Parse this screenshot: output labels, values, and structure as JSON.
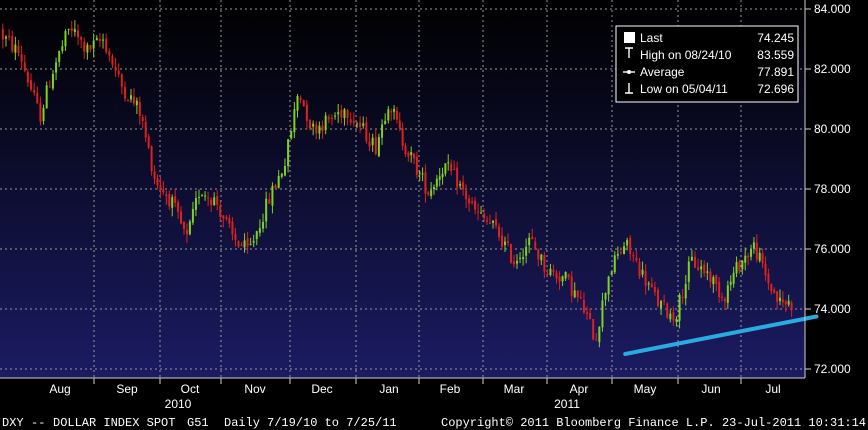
{
  "chart_data": {
    "type": "candlestick",
    "ticker": "DXY",
    "security": "DOLLAR INDEX SPOT",
    "page_code": "G51",
    "period": "Daily",
    "date_range": "7/19/10 to 7/25/11",
    "copyright": "Copyright© 2011 Bloomberg Finance L.P.",
    "timestamp": "23-Jul-2011 10:31:14",
    "ylim": [
      71.7,
      84.3
    ],
    "yticks": [
      72,
      74,
      76,
      78,
      80,
      82,
      84
    ],
    "ytick_labels": [
      "72.000",
      "74.000",
      "76.000",
      "78.000",
      "80.000",
      "82.000",
      "84.000"
    ],
    "x_months": [
      "Aug",
      "Sep",
      "Oct",
      "Nov",
      "Dec",
      "Jan",
      "Feb",
      "Mar",
      "Apr",
      "May",
      "Jun",
      "Jul"
    ],
    "x_years": [
      {
        "label": "2010",
        "month": "Oct"
      },
      {
        "label": "2011",
        "month": "Apr"
      }
    ],
    "up_color": "#7ed321",
    "down_color": "#e0201b",
    "trendline": {
      "color": "#29abe2",
      "start": {
        "month": "May",
        "offset": -0.3,
        "y": 72.5
      },
      "end": {
        "month": "Jul",
        "offset": 0.7,
        "y": 73.75
      }
    },
    "price_path": [
      [
        0,
        83.2
      ],
      [
        0.3,
        82.5
      ],
      [
        0.6,
        80.4
      ],
      [
        0.8,
        82.0
      ],
      [
        1.05,
        83.4
      ],
      [
        1.3,
        82.6
      ],
      [
        1.55,
        83.0
      ],
      [
        1.8,
        81.5
      ],
      [
        2.1,
        80.6
      ],
      [
        2.35,
        78.3
      ],
      [
        2.6,
        77.6
      ],
      [
        2.85,
        76.3
      ],
      [
        3.05,
        78.0
      ],
      [
        3.3,
        77.6
      ],
      [
        3.55,
        76.4
      ],
      [
        3.8,
        75.9
      ],
      [
        4.1,
        77.6
      ],
      [
        4.35,
        78.9
      ],
      [
        4.55,
        81.3
      ],
      [
        4.75,
        80.0
      ],
      [
        5.0,
        80.3
      ],
      [
        5.25,
        80.7
      ],
      [
        5.5,
        80.0
      ],
      [
        5.7,
        79.4
      ],
      [
        5.9,
        81.0
      ],
      [
        6.1,
        79.7
      ],
      [
        6.35,
        78.7
      ],
      [
        6.55,
        77.9
      ],
      [
        6.8,
        78.8
      ],
      [
        7.0,
        78.3
      ],
      [
        7.3,
        77.2
      ],
      [
        7.6,
        76.7
      ],
      [
        7.9,
        75.6
      ],
      [
        8.15,
        76.3
      ],
      [
        8.4,
        75.3
      ],
      [
        8.7,
        75.0
      ],
      [
        8.95,
        74.1
      ],
      [
        9.15,
        73.0
      ],
      [
        9.35,
        75.2
      ],
      [
        9.6,
        76.2
      ],
      [
        9.85,
        75.2
      ],
      [
        10.1,
        74.2
      ],
      [
        10.35,
        73.7
      ],
      [
        10.6,
        75.6
      ],
      [
        10.85,
        75.2
      ],
      [
        11.1,
        74.4
      ],
      [
        11.35,
        75.5
      ],
      [
        11.6,
        76.1
      ],
      [
        11.8,
        75.0
      ],
      [
        12.0,
        74.2
      ]
    ],
    "legend": [
      {
        "marker": "square",
        "label": "Last",
        "value": "74.245"
      },
      {
        "marker": "high",
        "label": "High on 08/24/10",
        "value": "83.559"
      },
      {
        "marker": "avg",
        "label": "Average",
        "value": "77.891"
      },
      {
        "marker": "low",
        "label": "Low on 05/04/11",
        "value": "72.696"
      }
    ]
  },
  "colors": {
    "bg_top": "#000000",
    "bg_bottom": "#1b1b63",
    "grid": "#9a9a9a",
    "axis_bg": "#000000",
    "legend_border": "#ffffff"
  }
}
